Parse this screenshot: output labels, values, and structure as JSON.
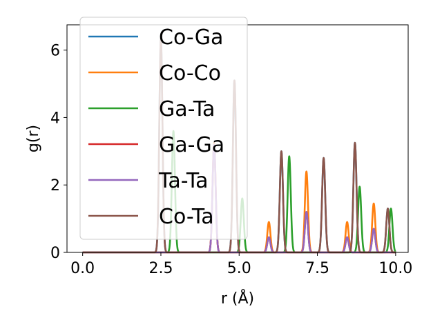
{
  "chart_data": {
    "type": "line",
    "xlabel": "r (Å)",
    "ylabel": "g(r)",
    "xlim": [
      -0.5,
      10.4
    ],
    "ylim": [
      0,
      6.75
    ],
    "xticks": [
      0.0,
      2.5,
      5.0,
      7.5,
      10.0
    ],
    "xtick_labels": [
      "0.0",
      "2.5",
      "5.0",
      "7.5",
      "10.0"
    ],
    "yticks": [
      0,
      2,
      4,
      6
    ],
    "ytick_labels": [
      "0",
      "2",
      "4",
      "6"
    ],
    "grid": false,
    "legend_position": "upper left",
    "series": [
      {
        "name": "Co-Ga",
        "color": "#1f77b4",
        "peaks": [
          [
            2.5,
            6.35
          ],
          [
            4.85,
            5.1
          ],
          [
            6.35,
            3.0
          ],
          [
            7.7,
            2.8
          ],
          [
            8.7,
            3.25
          ],
          [
            9.75,
            1.3
          ]
        ]
      },
      {
        "name": "Co-Co",
        "color": "#ff7f0e",
        "peaks": [
          [
            4.2,
            3.25
          ],
          [
            5.95,
            0.9
          ],
          [
            7.15,
            2.4
          ],
          [
            8.45,
            0.9
          ],
          [
            9.3,
            1.45
          ]
        ]
      },
      {
        "name": "Ga-Ta",
        "color": "#2ca02c",
        "peaks": [
          [
            2.9,
            3.6
          ],
          [
            5.1,
            1.6
          ],
          [
            6.6,
            2.85
          ],
          [
            8.85,
            1.95
          ],
          [
            9.85,
            1.3
          ]
        ]
      },
      {
        "name": "Ga-Ga",
        "color": "#d62728",
        "peaks": [
          [
            4.2,
            3.2
          ],
          [
            5.95,
            0.45
          ],
          [
            7.15,
            1.2
          ],
          [
            8.45,
            0.45
          ],
          [
            9.3,
            0.7
          ]
        ]
      },
      {
        "name": "Ta-Ta",
        "color": "#9467bd",
        "peaks": [
          [
            4.2,
            3.2
          ],
          [
            5.95,
            0.45
          ],
          [
            7.15,
            1.2
          ],
          [
            8.45,
            0.45
          ],
          [
            9.3,
            0.7
          ]
        ]
      },
      {
        "name": "Co-Ta",
        "color": "#8c564b",
        "peaks": [
          [
            2.5,
            6.35
          ],
          [
            4.85,
            5.1
          ],
          [
            6.35,
            3.0
          ],
          [
            7.7,
            2.8
          ],
          [
            8.7,
            3.25
          ],
          [
            9.75,
            1.3
          ]
        ]
      }
    ]
  }
}
